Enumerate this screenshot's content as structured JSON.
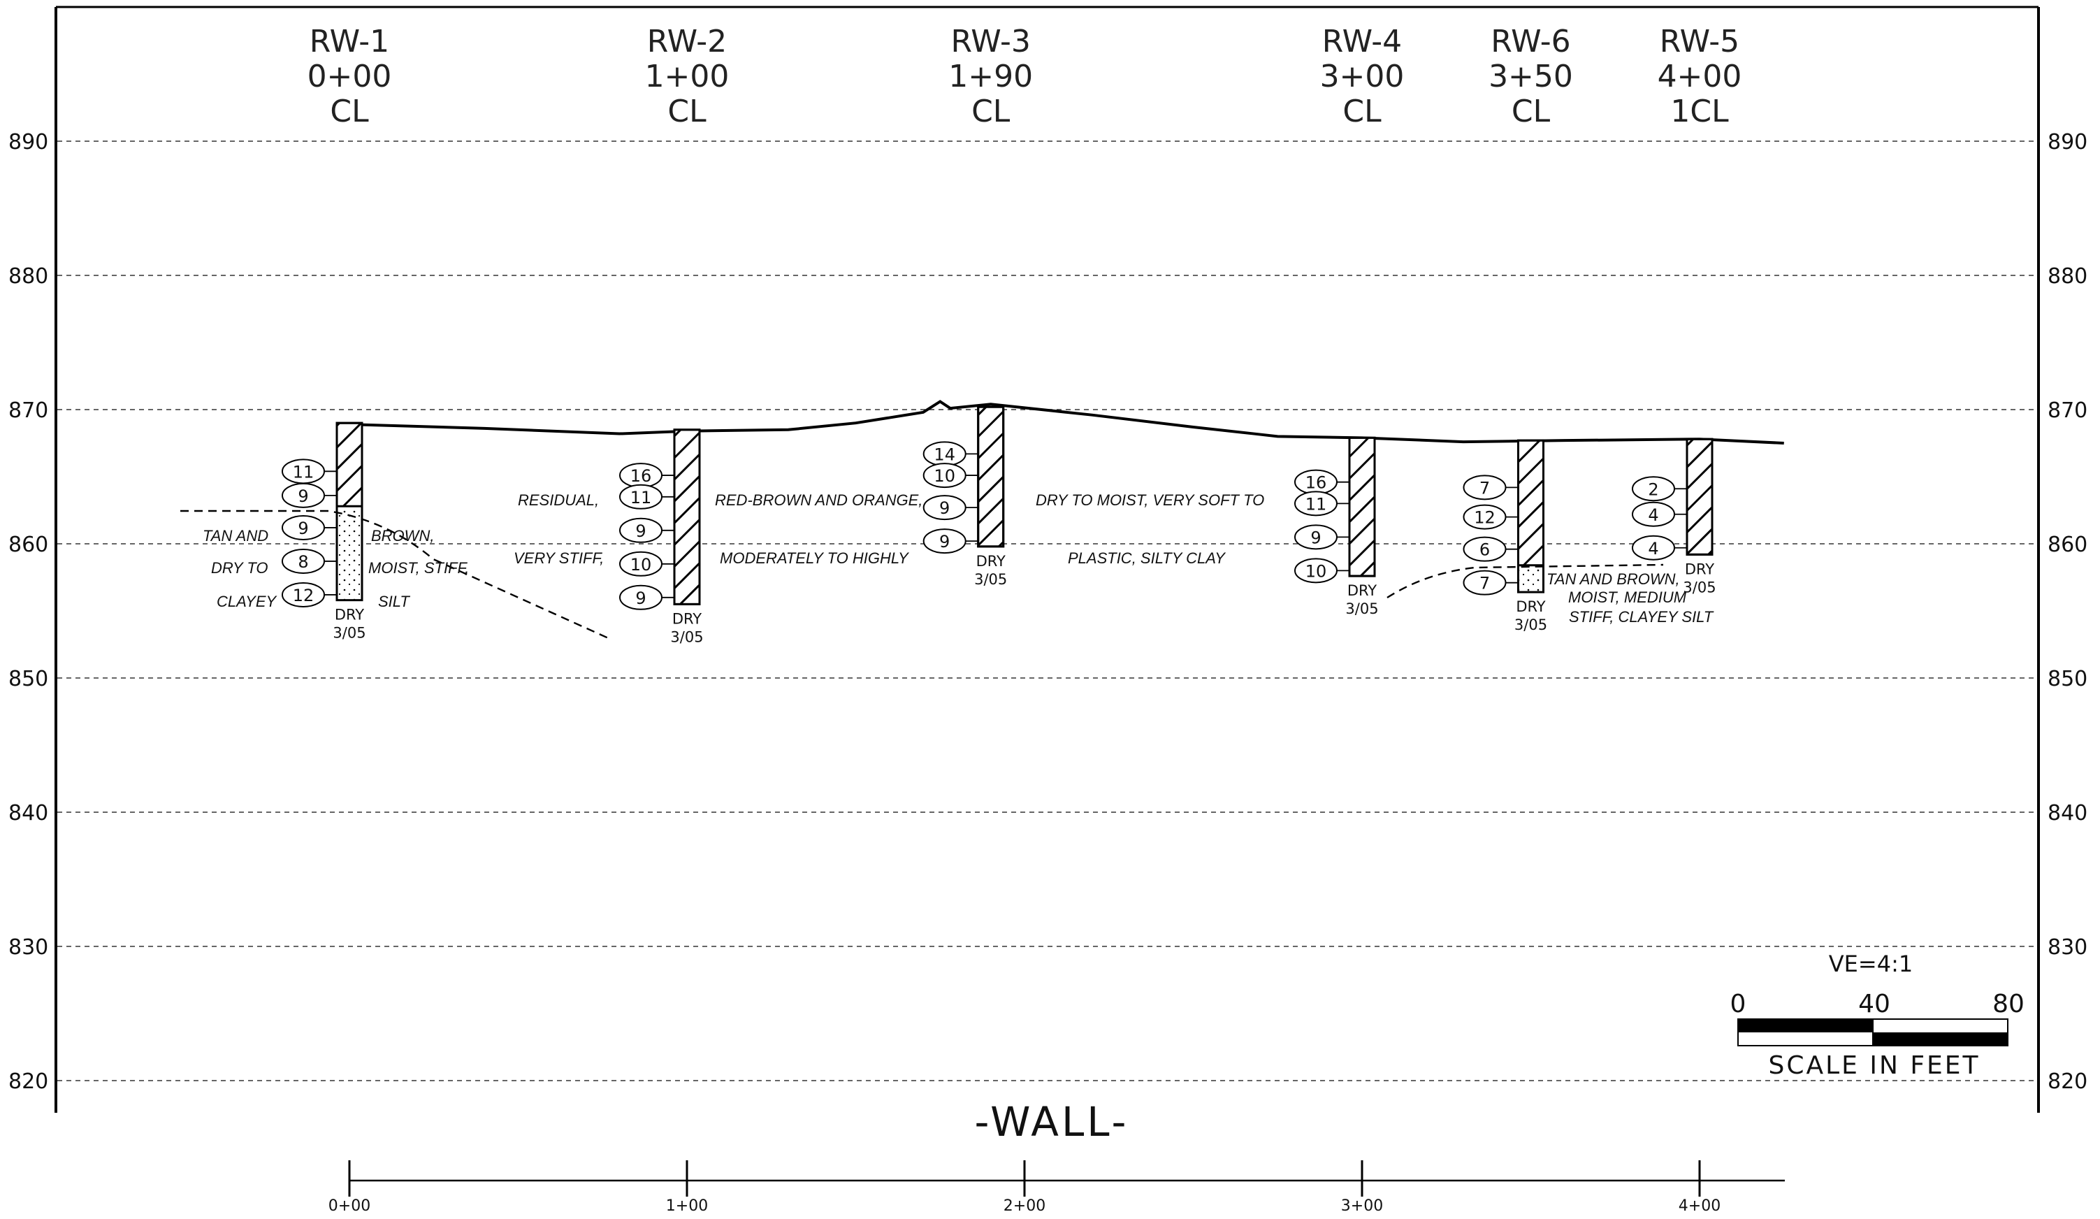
{
  "chart_data": {
    "type": "diagram",
    "title": "-WALL-",
    "vertical_exaggeration": "VE=4:1",
    "elevation_ticks": [
      890,
      880,
      870,
      860,
      850,
      840,
      830,
      820
    ],
    "ylim": [
      820,
      890
    ],
    "station_ticks": [
      "0+00",
      "1+00",
      "2+00",
      "3+00",
      "4+00"
    ],
    "xlim_ft": [
      0,
      425
    ],
    "scale_bar": {
      "labels": [
        "0",
        "40",
        "80"
      ],
      "caption": "SCALE IN FEET"
    },
    "ground_profile": [
      [
        0,
        868.9
      ],
      [
        40,
        868.6
      ],
      [
        80,
        868.2
      ],
      [
        100,
        868.4
      ],
      [
        130,
        868.5
      ],
      [
        150,
        869.0
      ],
      [
        170,
        869.8
      ],
      [
        175,
        870.6
      ],
      [
        178,
        870.1
      ],
      [
        190,
        870.4
      ],
      [
        220,
        869.6
      ],
      [
        250,
        868.7
      ],
      [
        268,
        868.2
      ],
      [
        275,
        868.0
      ],
      [
        300,
        867.9
      ],
      [
        330,
        867.6
      ],
      [
        360,
        867.7
      ],
      [
        400,
        867.8
      ],
      [
        425,
        867.5
      ]
    ],
    "borings": [
      {
        "id": "RW-1",
        "station": "0+00",
        "offset": "CL",
        "x_ft": 0,
        "top": 869.0,
        "bottom": 855.8,
        "fill_top": 862.8,
        "water": "DRY",
        "date": "3/05",
        "spt": [
          {
            "v": "11",
            "e": 865.4
          },
          {
            "v": "9",
            "e": 863.6
          },
          {
            "v": "9",
            "e": 861.2
          },
          {
            "v": "8",
            "e": 858.7
          },
          {
            "v": "12",
            "e": 856.2
          }
        ]
      },
      {
        "id": "RW-2",
        "station": "1+00",
        "offset": "CL",
        "x_ft": 100,
        "top": 868.5,
        "bottom": 855.5,
        "fill_top": null,
        "water": "DRY",
        "date": "3/05",
        "spt": [
          {
            "v": "16",
            "e": 865.1
          },
          {
            "v": "11",
            "e": 863.5
          },
          {
            "v": "9",
            "e": 861.0
          },
          {
            "v": "10",
            "e": 858.5
          },
          {
            "v": "9",
            "e": 856.0
          }
        ]
      },
      {
        "id": "RW-3",
        "station": "1+90",
        "offset": "CL",
        "x_ft": 190,
        "top": 870.2,
        "bottom": 859.8,
        "fill_top": null,
        "water": "DRY",
        "date": "3/05",
        "spt": [
          {
            "v": "14",
            "e": 866.7
          },
          {
            "v": "10",
            "e": 865.1
          },
          {
            "v": "9",
            "e": 862.7
          },
          {
            "v": "9",
            "e": 860.2
          }
        ]
      },
      {
        "id": "RW-4",
        "station": "3+00",
        "offset": "CL",
        "x_ft": 300,
        "top": 867.9,
        "bottom": 857.6,
        "fill_top": null,
        "water": "DRY",
        "date": "3/05",
        "spt": [
          {
            "v": "16",
            "e": 864.6
          },
          {
            "v": "11",
            "e": 863.0
          },
          {
            "v": "9",
            "e": 860.5
          },
          {
            "v": "10",
            "e": 858.0
          }
        ]
      },
      {
        "id": "RW-6",
        "station": "3+50",
        "offset": "CL",
        "x_ft": 350,
        "top": 867.7,
        "bottom": 856.4,
        "fill_top": 858.4,
        "water": "DRY",
        "date": "3/05",
        "spt": [
          {
            "v": "7",
            "e": 864.2
          },
          {
            "v": "12",
            "e": 862.0
          },
          {
            "v": "6",
            "e": 859.6
          },
          {
            "v": "7",
            "e": 857.1
          }
        ]
      },
      {
        "id": "RW-5",
        "station": "4+00",
        "offset": "1CL",
        "x_ft": 400,
        "top": 867.8,
        "bottom": 859.2,
        "fill_top": null,
        "water": "DRY",
        "date": "3/05",
        "spt": [
          {
            "v": "2",
            "e": 864.1
          },
          {
            "v": "4",
            "e": 862.2
          },
          {
            "v": "4",
            "e": 859.7
          }
        ]
      }
    ],
    "descriptions": {
      "left_col_1": [
        "TAN AND",
        "DRY TO",
        "CLAYEY"
      ],
      "left_col_2": [
        "BROWN,",
        "MOIST, STIFF,",
        "SILT"
      ],
      "residual": [
        "RESIDUAL,",
        "VERY STIFF,"
      ],
      "middle": [
        "RED-BROWN AND ORANGE,",
        "MODERATELY TO HIGHLY"
      ],
      "right": [
        "DRY TO MOIST, VERY SOFT TO",
        "PLASTIC, SILTY CLAY"
      ],
      "rw6": [
        "TAN AND BROWN,",
        "MOIST, MEDIUM",
        "STIFF, CLAYEY SILT"
      ]
    }
  }
}
